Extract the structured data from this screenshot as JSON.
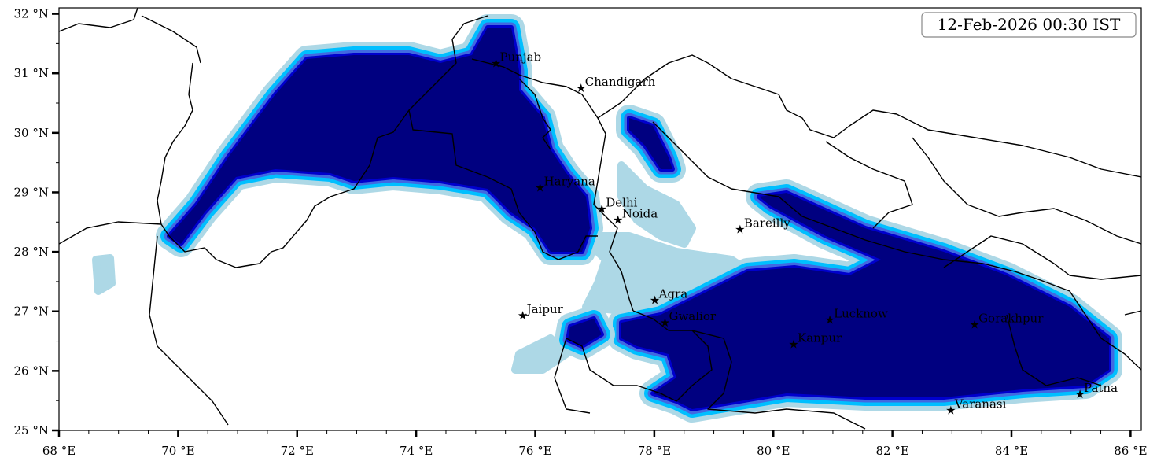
{
  "map": {
    "timestamp": "12-Feb-2026 00:30 IST",
    "extent": {
      "lon": [
        68,
        86.18
      ],
      "lat": [
        25,
        32.1
      ]
    },
    "x_ticks": [
      {
        "value": 68,
        "label": "68 °E"
      },
      {
        "value": 70,
        "label": "70 °E"
      },
      {
        "value": 72,
        "label": "72 °E"
      },
      {
        "value": 74,
        "label": "74 °E"
      },
      {
        "value": 76,
        "label": "76 °E"
      },
      {
        "value": 78,
        "label": "78 °E"
      },
      {
        "value": 80,
        "label": "80 °E"
      },
      {
        "value": 82,
        "label": "82 °E"
      },
      {
        "value": 84,
        "label": "84 °E"
      },
      {
        "value": 86,
        "label": "86 °E"
      }
    ],
    "y_ticks": [
      {
        "value": 25,
        "label": "25 °N"
      },
      {
        "value": 26,
        "label": "26 °N"
      },
      {
        "value": 27,
        "label": "27 °N"
      },
      {
        "value": 28,
        "label": "28 °N"
      },
      {
        "value": 29,
        "label": "29 °N"
      },
      {
        "value": 30,
        "label": "30 °N"
      },
      {
        "value": 31,
        "label": "31 °N"
      },
      {
        "value": 32,
        "label": "32 °N"
      }
    ],
    "minor_tick_step": 0.5,
    "colors": {
      "level1": "#add8e6",
      "level2": "#00bfff",
      "level3": "#4169e1",
      "level4": "#0000cd",
      "level5": "#000080"
    },
    "cities": [
      {
        "name": "Punjab",
        "lon": 75.34,
        "lat": 31.17
      },
      {
        "name": "Chandigarh",
        "lon": 76.77,
        "lat": 30.75
      },
      {
        "name": "Haryana",
        "lon": 76.08,
        "lat": 29.08
      },
      {
        "name": "Delhi",
        "lon": 77.12,
        "lat": 28.72
      },
      {
        "name": "Noida",
        "lon": 77.39,
        "lat": 28.54
      },
      {
        "name": "Bareilly",
        "lon": 79.44,
        "lat": 28.38
      },
      {
        "name": "Agra",
        "lon": 78.01,
        "lat": 27.19
      },
      {
        "name": "Jaipur",
        "lon": 75.79,
        "lat": 26.93
      },
      {
        "name": "Gwalior",
        "lon": 78.18,
        "lat": 26.81
      },
      {
        "name": "Lucknow",
        "lon": 80.95,
        "lat": 26.86
      },
      {
        "name": "Kanpur",
        "lon": 80.34,
        "lat": 26.45
      },
      {
        "name": "Gorakhpur",
        "lon": 83.38,
        "lat": 26.78
      },
      {
        "name": "Varanasi",
        "lon": 82.98,
        "lat": 25.34
      },
      {
        "name": "Patna",
        "lon": 85.15,
        "lat": 25.61
      }
    ]
  }
}
